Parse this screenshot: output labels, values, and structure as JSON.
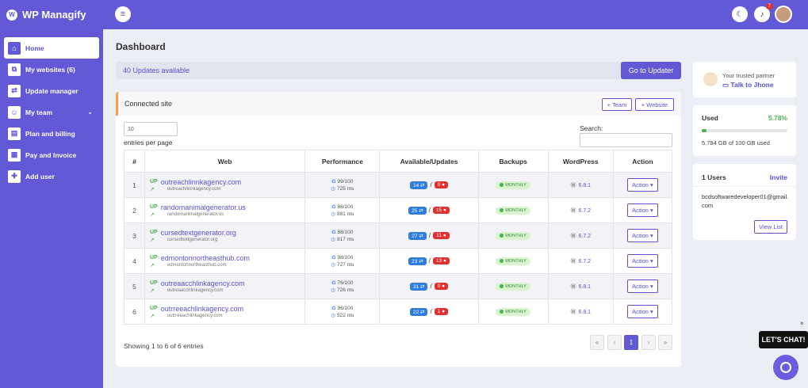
{
  "app": {
    "name": "WP Managify"
  },
  "sidebar": {
    "items": [
      {
        "label": "Home",
        "icon": "home-icon",
        "glyph": "⌂"
      },
      {
        "label": "My websites (6)",
        "icon": "sitemap-icon",
        "glyph": "⧉"
      },
      {
        "label": "Update manager",
        "icon": "sync-icon",
        "glyph": "⇄"
      },
      {
        "label": "My team",
        "icon": "team-icon",
        "glyph": "☺"
      },
      {
        "label": "Plan and billing",
        "icon": "billing-icon",
        "glyph": "▤"
      },
      {
        "label": "Pay and Invoice",
        "icon": "invoice-icon",
        "glyph": "▦"
      },
      {
        "label": "Add user",
        "icon": "add-user-icon",
        "glyph": "✚"
      }
    ]
  },
  "topbar": {
    "notification_count": "7"
  },
  "page": {
    "title": "Dashboard"
  },
  "updates": {
    "text": "40 Updates available",
    "button": "Go to Updater"
  },
  "connected": {
    "title": "Connected site",
    "team_btn": "+ Team",
    "website_btn": "+ Website",
    "entries_value": "10",
    "entries_label": "entries per page",
    "search_label": "Search:",
    "columns": [
      "#",
      "Web",
      "Performance",
      "Available/Updates",
      "Backups",
      "WordPress",
      "Action"
    ],
    "rows": [
      {
        "num": "1",
        "status": "UP",
        "site": "outreachlinnkagency.com",
        "sub": "outreachlinnkagency.com",
        "score": "99/100",
        "ms": "725 ms",
        "avail": "14",
        "updates": "0",
        "backup": "MONTHLY",
        "wp": "6.8.1",
        "action": "Action"
      },
      {
        "num": "2",
        "status": "UP",
        "site": "randomanimalgenerator.us",
        "sub": "randomanimalgenerator.us",
        "score": "86/100",
        "ms": "881 ms",
        "avail": "25",
        "updates": "15",
        "backup": "MONTHLY",
        "wp": "6.7.2",
        "action": "Action"
      },
      {
        "num": "3",
        "status": "UP",
        "site": "cursedtextgenerator.org",
        "sub": "cursedtextgenerator.org",
        "score": "88/100",
        "ms": "817 ms",
        "avail": "27",
        "updates": "11",
        "backup": "MONTHLY",
        "wp": "6.7.2",
        "action": "Action"
      },
      {
        "num": "4",
        "status": "UP",
        "site": "edmontonnortheasthub.com",
        "sub": "edmontonnortheasthub.com",
        "score": "98/100",
        "ms": "727 ms",
        "avail": "23",
        "updates": "13",
        "backup": "MONTHLY",
        "wp": "6.7.2",
        "action": "Action"
      },
      {
        "num": "5",
        "status": "UP",
        "site": "outreaacchlinkagency.com",
        "sub": "outreaacchlinkagency.com",
        "score": "76/100",
        "ms": "726 ms",
        "avail": "31",
        "updates": "0",
        "backup": "MONTHLY",
        "wp": "6.8.1",
        "action": "Action"
      },
      {
        "num": "6",
        "status": "UP",
        "site": "outrreeachlinkagency.com",
        "sub": "outrreeachlinkagency.com",
        "score": "96/100",
        "ms": "522 ms",
        "avail": "22",
        "updates": "1",
        "backup": "MONTHLY",
        "wp": "6.8.1",
        "action": "Action"
      }
    ],
    "showing": "Showing 1 to 6 of 6 entries",
    "pagination": [
      "«",
      "‹",
      "1",
      "›",
      "»"
    ]
  },
  "partner": {
    "small": "Your trusted partner",
    "link": "Talk to Jhone"
  },
  "usage": {
    "label": "Used",
    "percent": "5.78%",
    "fraction": 0.0578,
    "text": "5.784 GB of 100 GB used"
  },
  "users": {
    "label": "1 Users",
    "invite": "Invite",
    "email": "bcdsoftwaredeveloper01@gmail.com",
    "view_list": "View List"
  },
  "chat": {
    "label": "LET'S CHAT!",
    "close": "×"
  },
  "colors": {
    "primary": "#6159d6",
    "success": "#4caf50",
    "danger": "#e03131",
    "info": "#2f7de1",
    "accent": "#f1a341"
  }
}
